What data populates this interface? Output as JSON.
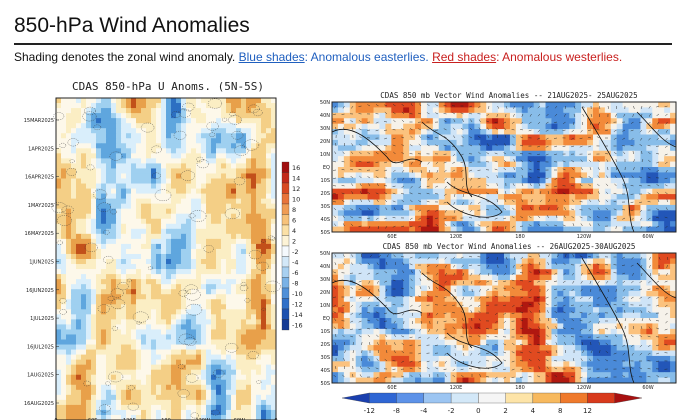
{
  "page": {
    "title": "850-hPa Wind Anomalies",
    "description": {
      "prefix": "Shading denotes the zonal wind anomaly. ",
      "blue_link": "Blue shades",
      "blue_text": ": Anomalous easterlies. ",
      "red_link": "Red shades",
      "red_text": ": Anomalous westerlies."
    }
  },
  "hovmoller": {
    "title": "CDAS 850-hPa U Anoms. (5N-5S)",
    "date_labels": [
      "15MAR2025",
      "1APR2025",
      "16APR2025",
      "1MAY2025",
      "16MAY2025",
      "1JUN2025",
      "16JUN2025",
      "1JUL2025",
      "16JUL2025",
      "1AUG2025",
      "16AUG2025"
    ],
    "lon_labels": [
      "0",
      "60E",
      "120E",
      "180",
      "120W",
      "60W",
      "0"
    ],
    "colorbar_values": [
      "16",
      "14",
      "12",
      "10",
      "8",
      "6",
      "4",
      "2",
      "-2",
      "-4",
      "-6",
      "-8",
      "-10",
      "-12",
      "-14",
      "-16"
    ]
  },
  "map_top": {
    "title": "CDAS 850 mb Vector Wind Anomalies -- 21AUG2025- 25AUG2025",
    "lat_labels": [
      "50N",
      "40N",
      "30N",
      "20N",
      "10N",
      "EQ",
      "10S",
      "20S",
      "30S",
      "40S",
      "50S"
    ],
    "lon_labels": [
      "60E",
      "120E",
      "180",
      "120W",
      "60W"
    ]
  },
  "map_bottom": {
    "title": "CDAS 850 mb Vector Wind Anomalies -- 26AUG2025-30AUG2025",
    "lat_labels": [
      "50N",
      "40N",
      "30N",
      "20N",
      "10N",
      "EQ",
      "10S",
      "20S",
      "30S",
      "40S",
      "50S"
    ],
    "lon_labels": [
      "60E",
      "120E",
      "180",
      "120W",
      "60W"
    ]
  },
  "colorbar_bottom": {
    "values": [
      "-12",
      "-8",
      "-4",
      "-2",
      "0",
      "2",
      "4",
      "8",
      "12"
    ],
    "colors": [
      "#1a3fae",
      "#2f66d4",
      "#5d92e8",
      "#9cc5f2",
      "#d3e8f8",
      "#f5f5f5",
      "#fde4a8",
      "#f7b95e",
      "#ef7a2c",
      "#d83a1c",
      "#a81010"
    ]
  },
  "colors": {
    "blue_shade": "#1f5fbf",
    "red_shade": "#c8201f"
  }
}
